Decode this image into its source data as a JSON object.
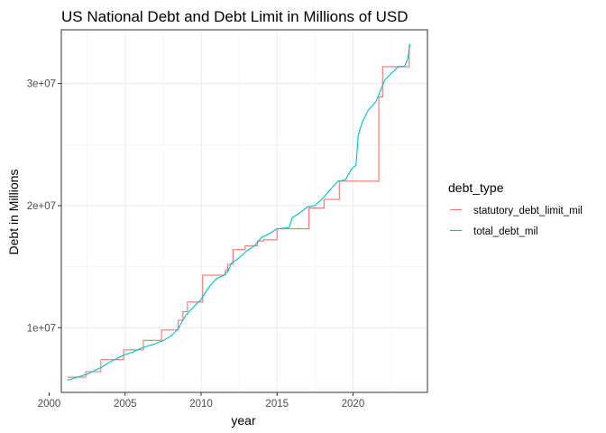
{
  "chart_data": {
    "type": "line",
    "title": "US National Debt and Debt Limit in Millions of USD",
    "xlabel": "year",
    "ylabel": "Debt in Millions",
    "xlim": [
      2000.8,
      2024.9
    ],
    "ylim": [
      4700000,
      34400000
    ],
    "x_ticks": [
      2000,
      2005,
      2010,
      2015,
      2020
    ],
    "x_tick_labels": [
      "2000",
      "2005",
      "2010",
      "2015",
      "2020"
    ],
    "y_ticks": [
      10000000,
      20000000,
      30000000
    ],
    "y_tick_labels": [
      "1e+07",
      "2e+07",
      "3e+07"
    ],
    "grid": true,
    "legend": {
      "title": "debt_type",
      "position": "right",
      "entries": [
        "statutory_debt_limit_mil",
        "total_debt_mil"
      ]
    },
    "series": [
      {
        "name": "statutory_debt_limit_mil",
        "color": "#F8766D",
        "step": true,
        "x": [
          2001.2,
          2002.4,
          2003.4,
          2004.9,
          2006.2,
          2007.4,
          2008.5,
          2008.8,
          2009.1,
          2010.1,
          2011.6,
          2011.75,
          2012.1,
          2012.9,
          2013.7,
          2014.1,
          2015.0,
          2015.9,
          2017.1,
          2017.6,
          2018.1,
          2019.1,
          2019.6,
          2021.7,
          2021.95,
          2023.45,
          2023.7
        ],
        "y": [
          5950000,
          6400000,
          7384000,
          8184000,
          8965000,
          9815000,
          10615000,
          11315000,
          12104000,
          14294000,
          14694000,
          15194000,
          16394000,
          16700000,
          17100000,
          17200000,
          18100000,
          18100000,
          19800000,
          19800000,
          20500000,
          22000000,
          22000000,
          28900000,
          31381000,
          31381000,
          33200000
        ]
      },
      {
        "name": "total_debt_mil",
        "color": "#00BFC4",
        "step": false,
        "x": [
          2001.2,
          2002.0,
          2002.5,
          2003.0,
          2003.5,
          2004.0,
          2004.5,
          2005.0,
          2005.5,
          2006.0,
          2006.5,
          2007.0,
          2007.5,
          2008.0,
          2008.5,
          2008.75,
          2009.0,
          2009.5,
          2010.0,
          2010.5,
          2011.0,
          2011.5,
          2011.75,
          2012.0,
          2012.5,
          2013.0,
          2013.5,
          2014.0,
          2014.5,
          2015.0,
          2015.5,
          2015.8,
          2016.0,
          2016.5,
          2017.0,
          2017.5,
          2018.0,
          2018.5,
          2019.0,
          2019.5,
          2019.9,
          2020.2,
          2020.35,
          2020.6,
          2021.0,
          2021.5,
          2021.9,
          2022.1,
          2022.5,
          2023.0,
          2023.4,
          2023.6,
          2023.75
        ],
        "y": [
          5700000,
          6000000,
          6200000,
          6500000,
          6800000,
          7200000,
          7500000,
          7800000,
          8000000,
          8300000,
          8500000,
          8700000,
          8950000,
          9300000,
          9900000,
          10500000,
          11000000,
          11700000,
          12300000,
          13300000,
          14000000,
          14300000,
          14600000,
          15300000,
          15700000,
          16300000,
          16700000,
          17400000,
          17700000,
          18100000,
          18150000,
          18200000,
          19000000,
          19400000,
          19900000,
          20000000,
          20600000,
          21300000,
          22000000,
          22100000,
          23000000,
          23300000,
          25800000,
          26800000,
          27800000,
          28500000,
          29700000,
          30300000,
          30800000,
          31400000,
          31400000,
          32000000,
          33200000
        ]
      }
    ]
  }
}
